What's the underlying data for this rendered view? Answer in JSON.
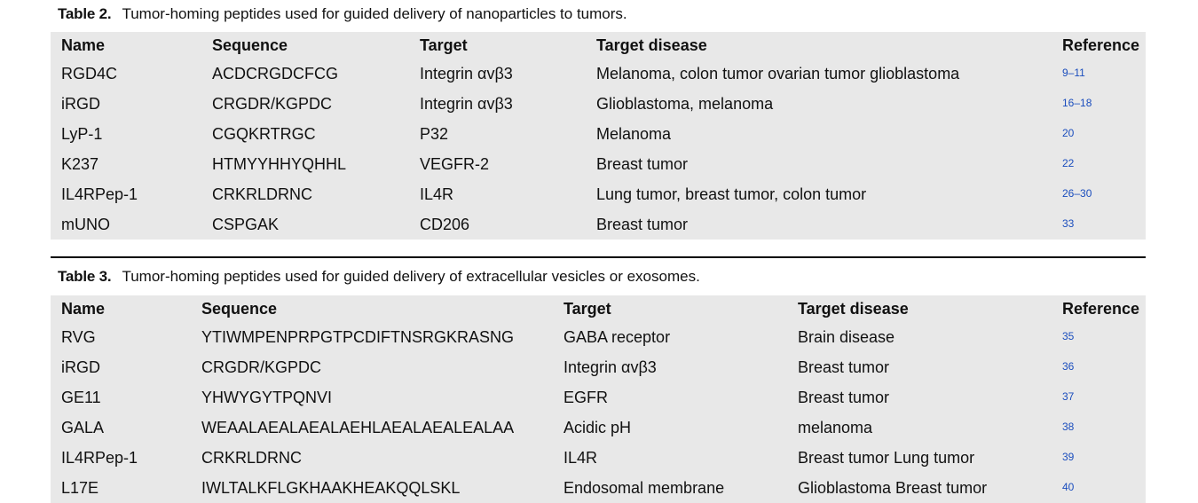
{
  "table2": {
    "label": "Table 2.",
    "caption": "Tumor-homing peptides used for guided delivery of nanoparticles to tumors.",
    "headers": [
      "Name",
      "Sequence",
      "Target",
      "Target disease",
      "Reference"
    ],
    "rows": [
      {
        "name": "RGD4C",
        "sequence": "ACDCRGDCFCG",
        "target": "Integrin αvβ3",
        "disease": "Melanoma, colon tumor ovarian tumor glioblastoma",
        "ref": "9–11"
      },
      {
        "name": "iRGD",
        "sequence": "CRGDR/KGPDC",
        "target": "Integrin αvβ3",
        "disease": "Glioblastoma, melanoma",
        "ref": "16–18"
      },
      {
        "name": "LyP-1",
        "sequence": "CGQKRTRGC",
        "target": "P32",
        "disease": "Melanoma",
        "ref": "20"
      },
      {
        "name": "K237",
        "sequence": "HTMYYHHYQHHL",
        "target": "VEGFR-2",
        "disease": "Breast tumor",
        "ref": "22"
      },
      {
        "name": "IL4RPep-1",
        "sequence": "CRKRLDRNC",
        "target": "IL4R",
        "disease": "Lung tumor, breast tumor, colon tumor",
        "ref": "26–30"
      },
      {
        "name": "mUNO",
        "sequence": "CSPGAK",
        "target": "CD206",
        "disease": "Breast tumor",
        "ref": "33"
      }
    ]
  },
  "table3": {
    "label": "Table 3.",
    "caption": "Tumor-homing peptides used for guided delivery of extracellular vesicles or exosomes.",
    "headers": [
      "Name",
      "Sequence",
      "Target",
      "Target disease",
      "Reference"
    ],
    "rows": [
      {
        "name": "RVG",
        "sequence": "YTIWMPENPRPGTPCDIFTNSRGKRASNG",
        "target": "GABA receptor",
        "disease": "Brain disease",
        "ref": "35"
      },
      {
        "name": "iRGD",
        "sequence": "CRGDR/KGPDC",
        "target": "Integrin αvβ3",
        "disease": "Breast tumor",
        "ref": "36"
      },
      {
        "name": "GE11",
        "sequence": "YHWYGYTPQNVI",
        "target": "EGFR",
        "disease": "Breast tumor",
        "ref": "37"
      },
      {
        "name": "GALA",
        "sequence": "WEAALAEALAEALAEHLAEALAEALEALAA",
        "target": "Acidic pH",
        "disease": "melanoma",
        "ref": "38"
      },
      {
        "name": "IL4RPep-1",
        "sequence": "CRKRLDRNC",
        "target": "IL4R",
        "disease": "Breast tumor Lung tumor",
        "ref": "39"
      },
      {
        "name": "L17E",
        "sequence": "IWLTALKFLGKHAAKHEAKQQLSKL",
        "target": "Endosomal membrane",
        "disease": "Glioblastoma Breast tumor",
        "ref": "40"
      }
    ]
  }
}
